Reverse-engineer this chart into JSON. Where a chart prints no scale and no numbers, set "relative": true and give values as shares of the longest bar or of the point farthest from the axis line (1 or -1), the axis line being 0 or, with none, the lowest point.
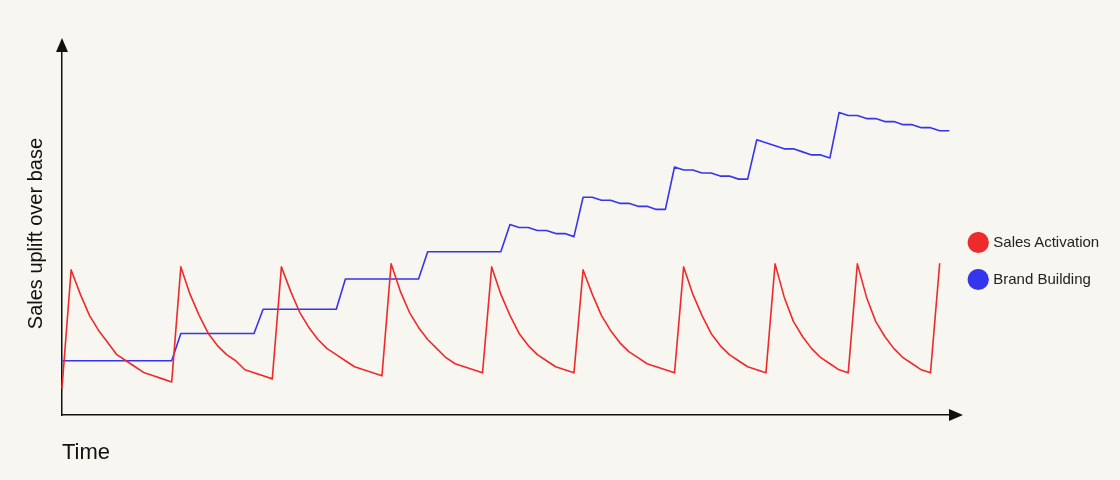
{
  "chart_data": {
    "type": "line",
    "relative": true,
    "xlabel": "Time",
    "ylabel": "Sales uplift over base",
    "legend": "right",
    "marker": "none",
    "line_style": "solid",
    "categories": [
      null,
      null,
      null,
      null,
      null,
      null,
      null,
      null,
      null,
      null,
      null,
      null,
      null,
      null,
      null,
      null,
      null,
      null,
      null,
      null,
      null,
      null,
      null,
      null,
      null,
      null,
      null,
      null,
      null,
      null,
      null,
      null,
      null,
      null,
      null,
      null,
      null,
      null,
      null,
      null,
      null,
      null,
      null,
      null,
      null,
      null,
      null,
      null,
      null,
      null,
      null,
      null,
      null,
      null,
      null,
      null,
      null,
      null,
      null,
      null,
      null,
      null,
      null,
      null,
      null,
      null,
      null,
      null,
      null,
      null,
      null,
      null,
      null,
      null,
      null,
      null,
      null,
      null,
      null,
      null,
      null,
      null,
      null,
      null,
      null,
      null,
      null,
      null,
      null,
      null,
      null,
      null,
      null,
      null,
      null,
      null,
      null,
      null
    ],
    "series": [
      {
        "name": "Sales Activation",
        "color": "#ee2b2b",
        "values": [
          0.09,
          0.48,
          0.4,
          0.33,
          0.28,
          0.24,
          0.2,
          0.18,
          0.16,
          0.14,
          0.13,
          0.12,
          0.11,
          0.49,
          0.4,
          0.33,
          0.27,
          0.23,
          0.2,
          0.18,
          0.15,
          0.14,
          0.13,
          0.12,
          0.49,
          0.41,
          0.34,
          0.29,
          0.25,
          0.22,
          0.2,
          0.18,
          0.16,
          0.15,
          0.14,
          0.13,
          0.5,
          0.41,
          0.34,
          0.29,
          0.25,
          0.22,
          0.19,
          0.17,
          0.16,
          0.15,
          0.14,
          0.49,
          0.4,
          0.33,
          0.27,
          0.23,
          0.2,
          0.18,
          0.16,
          0.15,
          0.14,
          0.48,
          0.4,
          0.33,
          0.28,
          0.24,
          0.21,
          0.19,
          0.17,
          0.16,
          0.15,
          0.14,
          0.49,
          0.4,
          0.33,
          0.27,
          0.23,
          0.2,
          0.18,
          0.16,
          0.15,
          0.14,
          0.5,
          0.39,
          0.31,
          0.26,
          0.22,
          0.19,
          0.17,
          0.15,
          0.14,
          0.5,
          0.39,
          0.31,
          0.26,
          0.22,
          0.19,
          0.17,
          0.15,
          0.14,
          0.5,
          null
        ]
      },
      {
        "name": "Brand Building",
        "color": "#3535ee",
        "values": [
          0.18,
          0.18,
          0.18,
          0.18,
          0.18,
          0.18,
          0.18,
          0.18,
          0.18,
          0.18,
          0.18,
          0.18,
          0.18,
          0.27,
          0.27,
          0.27,
          0.27,
          0.27,
          0.27,
          0.27,
          0.27,
          0.27,
          0.35,
          0.35,
          0.35,
          0.35,
          0.35,
          0.35,
          0.35,
          0.35,
          0.35,
          0.45,
          0.45,
          0.45,
          0.45,
          0.45,
          0.45,
          0.45,
          0.45,
          0.45,
          0.54,
          0.54,
          0.54,
          0.54,
          0.54,
          0.54,
          0.54,
          0.54,
          0.54,
          0.63,
          0.62,
          0.62,
          0.61,
          0.61,
          0.6,
          0.6,
          0.59,
          0.72,
          0.72,
          0.71,
          0.71,
          0.7,
          0.7,
          0.69,
          0.69,
          0.68,
          0.68,
          0.82,
          0.81,
          0.81,
          0.8,
          0.8,
          0.79,
          0.79,
          0.78,
          0.78,
          0.91,
          0.9,
          0.89,
          0.88,
          0.88,
          0.87,
          0.86,
          0.86,
          0.85,
          1,
          0.99,
          0.99,
          0.98,
          0.98,
          0.97,
          0.97,
          0.96,
          0.96,
          0.95,
          0.95,
          0.94,
          0.94
        ]
      }
    ]
  }
}
